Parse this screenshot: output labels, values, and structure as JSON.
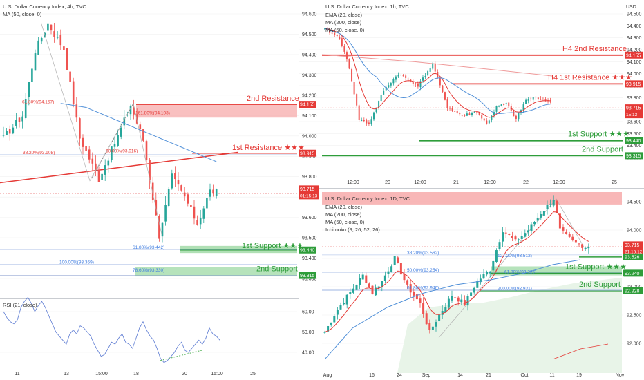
{
  "colors": {
    "candle_up": "#26a69a",
    "candle_down": "#ef5350",
    "ema": "#e53935",
    "ma200": "#ef9a9a",
    "ma50": "#4f8fd8",
    "resistance": "#e53935",
    "support": "#2e9d3a",
    "price_tag": "#e53935",
    "fib_label": "#e53935",
    "fib_label_low": "#3d7be0",
    "ichimoku_cloud": "#e8f4e8",
    "rsi": "#6a86d6",
    "axis_text": "#333333"
  },
  "charts": [
    {
      "id": "h4",
      "title": "U.S. Dollar Currency Index, 4h, TVC",
      "indicator": "MA (50, close, 0)",
      "axis_unit": "",
      "y_ticks": [
        "94.600",
        "94.500",
        "94.400",
        "94.300",
        "94.200",
        "94.100",
        "94.000",
        "93.900",
        "93.800",
        "93.700",
        "93.600",
        "93.500",
        "93.400",
        "93.300"
      ],
      "x_ticks": [
        "11",
        "13",
        "15:00",
        "18",
        "20",
        "15:00",
        "25"
      ],
      "levels": [
        {
          "label": "2nd Resistance",
          "value": "94.155",
          "kind": "resistance"
        },
        {
          "label": "1st Resistance ★★★",
          "value": "93.915",
          "kind": "resistance"
        },
        {
          "label": "1st Support ★★★",
          "value": "93.440",
          "kind": "support"
        },
        {
          "label": "2nd Support",
          "value": "93.315",
          "kind": "support"
        }
      ],
      "price": {
        "value": "93.715",
        "countdown": "01:15:13"
      },
      "fib_labels": [
        "61.80%(94.157)",
        "161.80%(94.103)",
        "38.20%(93.908)",
        "50.00%(93.916)",
        "61.80%(93.442)",
        "100.00%(93.369)",
        "78.60%(93.330)"
      ],
      "rsi": {
        "title": "RSI (21, close)",
        "y_ticks": [
          "60.00",
          "50.00",
          "40.00"
        ],
        "values": [
          60,
          57,
          55,
          54,
          56,
          62,
          65,
          67,
          64,
          60,
          63,
          65,
          62,
          58,
          54,
          50,
          48,
          46,
          44,
          49,
          51,
          49,
          53,
          52,
          50,
          48,
          44,
          41,
          38,
          39,
          42,
          45,
          44,
          47,
          49,
          45,
          44,
          42,
          47,
          52,
          55,
          51,
          48,
          46,
          42,
          37,
          35,
          36,
          38,
          40,
          43,
          45,
          41,
          40,
          42,
          44,
          46,
          44,
          47,
          52,
          49,
          48,
          46
        ]
      }
    },
    {
      "id": "h1",
      "title": "U.S. Dollar Currency Index, 1h, TVC",
      "indicators": [
        "EMA (20, close)",
        "MA (200, close)",
        "MA (50, close, 0)"
      ],
      "axis_unit": "USD",
      "y_ticks": [
        "94.500",
        "94.400",
        "94.300",
        "94.200",
        "94.100",
        "94.000",
        "93.900",
        "93.800",
        "93.700",
        "93.600",
        "93.500",
        "93.400",
        "93.300"
      ],
      "x_ticks": [
        "12:00",
        "20",
        "12:00",
        "21",
        "12:00",
        "22",
        "12:00",
        "25"
      ],
      "levels": [
        {
          "label": "H4 2nd Resistance",
          "value": "94.155",
          "kind": "resistance"
        },
        {
          "label": "H4 1st Resistance ★★★",
          "value": "93.915",
          "kind": "resistance"
        },
        {
          "label": "1st Support ★★★",
          "value": "93.440",
          "kind": "support"
        },
        {
          "label": "2nd Support",
          "value": "93.315",
          "kind": "support"
        }
      ],
      "price": {
        "value": "93.715",
        "countdown": "15:13"
      }
    },
    {
      "id": "d1",
      "title": "U.S. Dollar Currency Index, 1D, TVC",
      "indicators": [
        "EMA (20, close)",
        "MA (200, close)",
        "MA (50, close, 0)",
        "Ichimoku (9, 26, 52, 26)"
      ],
      "axis_unit": "",
      "y_ticks": [
        "94.500",
        "94.000",
        "93.500",
        "93.000",
        "92.500",
        "92.000"
      ],
      "x_ticks": [
        "Aug",
        "16",
        "24",
        "Sep",
        "14",
        "21",
        "Oct",
        "11",
        "19",
        "Nov"
      ],
      "levels": [
        {
          "label": "1st Support ★★★",
          "value": "93.240",
          "kind": "support"
        },
        {
          "label": "2nd Support",
          "value": "92.928",
          "kind": "support"
        }
      ],
      "extra_tag": "93.526",
      "price": {
        "value": "93.715",
        "countdown": "21:15:12"
      },
      "fib_labels": [
        "38.20%(93.562)",
        "127.20%(93.512)",
        "50.00%(93.254)",
        "61.80%(93.226)",
        "61.80%(92.946)",
        "200.00%(92.931)"
      ]
    }
  ]
}
